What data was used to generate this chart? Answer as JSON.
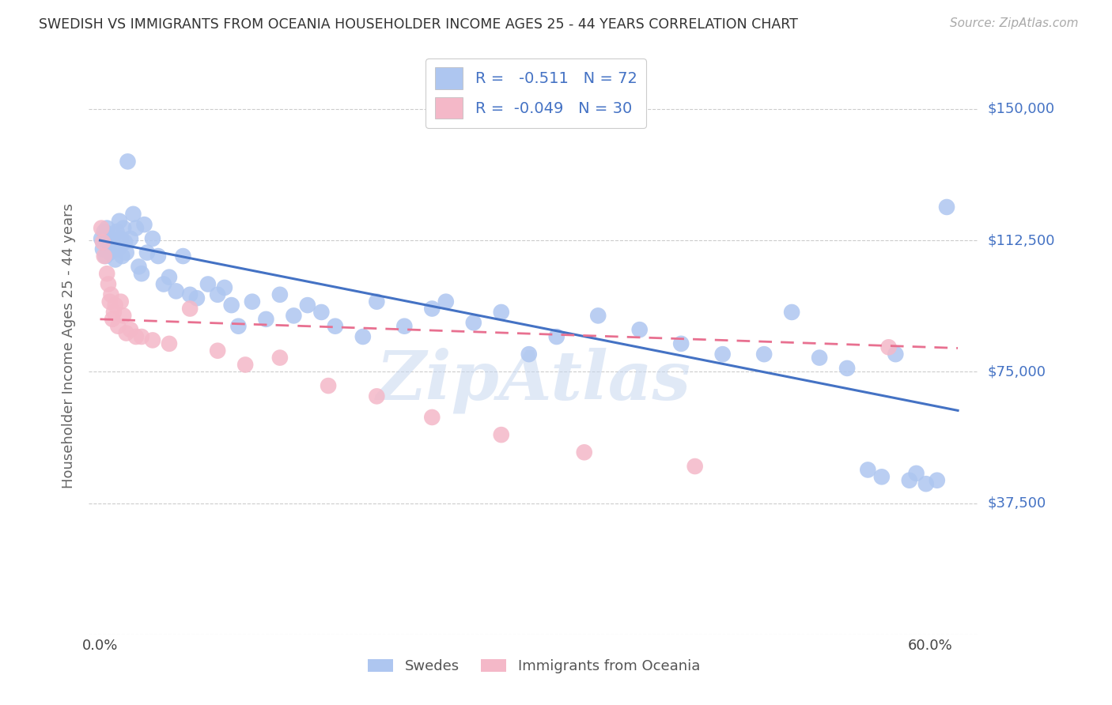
{
  "title": "SWEDISH VS IMMIGRANTS FROM OCEANIA HOUSEHOLDER INCOME AGES 25 - 44 YEARS CORRELATION CHART",
  "source": "Source: ZipAtlas.com",
  "ylabel": "Householder Income Ages 25 - 44 years",
  "ytick_values": [
    37500,
    75000,
    112500,
    150000
  ],
  "ytick_labels": [
    "$37,500",
    "$75,000",
    "$112,500",
    "$150,000"
  ],
  "xtick_left": "0.0%",
  "xtick_right": "60.0%",
  "ymin": 0,
  "ymax": 165000,
  "xmin": -0.008,
  "xmax": 0.635,
  "legend_label1": "R =   -0.511   N = 72",
  "legend_label2": "R =  -0.049   N = 30",
  "scatter1_color": "#aec6f0",
  "scatter2_color": "#f4b8c8",
  "line1_color": "#4472c4",
  "line2_color": "#e87090",
  "watermark": "ZipAtlas",
  "scatter1_label": "Swedes",
  "scatter2_label": "Immigrants from Oceania",
  "title_fontsize": 12.5,
  "label_fontsize": 13,
  "source_fontsize": 11,
  "grid_color": "#cccccc",
  "line1_intercept": 112500,
  "line1_slope": -78333,
  "line2_intercept": 90000,
  "line2_slope": -13333,
  "swedes_x": [
    0.001,
    0.002,
    0.003,
    0.004,
    0.005,
    0.006,
    0.007,
    0.008,
    0.009,
    0.01,
    0.011,
    0.012,
    0.013,
    0.014,
    0.015,
    0.016,
    0.017,
    0.018,
    0.019,
    0.02,
    0.022,
    0.024,
    0.026,
    0.028,
    0.03,
    0.032,
    0.034,
    0.038,
    0.042,
    0.046,
    0.05,
    0.055,
    0.06,
    0.065,
    0.07,
    0.078,
    0.085,
    0.09,
    0.095,
    0.1,
    0.11,
    0.12,
    0.13,
    0.14,
    0.15,
    0.16,
    0.17,
    0.19,
    0.2,
    0.22,
    0.24,
    0.25,
    0.27,
    0.29,
    0.31,
    0.33,
    0.36,
    0.39,
    0.42,
    0.45,
    0.48,
    0.5,
    0.52,
    0.54,
    0.555,
    0.565,
    0.575,
    0.585,
    0.59,
    0.597,
    0.605,
    0.612
  ],
  "swedes_y": [
    113000,
    110000,
    115000,
    108000,
    116000,
    112000,
    109000,
    113000,
    111000,
    114000,
    107000,
    115000,
    110000,
    118000,
    113000,
    108000,
    116000,
    112000,
    109000,
    135000,
    113000,
    120000,
    116000,
    105000,
    103000,
    117000,
    109000,
    113000,
    108000,
    100000,
    102000,
    98000,
    108000,
    97000,
    96000,
    100000,
    97000,
    99000,
    94000,
    88000,
    95000,
    90000,
    97000,
    91000,
    94000,
    92000,
    88000,
    85000,
    95000,
    88000,
    93000,
    95000,
    89000,
    92000,
    80000,
    85000,
    91000,
    87000,
    83000,
    80000,
    80000,
    92000,
    79000,
    76000,
    47000,
    45000,
    80000,
    44000,
    46000,
    43000,
    44000,
    122000
  ],
  "oceania_x": [
    0.001,
    0.002,
    0.003,
    0.005,
    0.006,
    0.007,
    0.008,
    0.009,
    0.01,
    0.011,
    0.013,
    0.015,
    0.017,
    0.019,
    0.022,
    0.026,
    0.03,
    0.038,
    0.05,
    0.065,
    0.085,
    0.105,
    0.13,
    0.165,
    0.2,
    0.24,
    0.29,
    0.35,
    0.43,
    0.57
  ],
  "oceania_y": [
    116000,
    112000,
    108000,
    103000,
    100000,
    95000,
    97000,
    90000,
    92000,
    94000,
    88000,
    95000,
    91000,
    86000,
    87000,
    85000,
    85000,
    84000,
    83000,
    93000,
    81000,
    77000,
    79000,
    71000,
    68000,
    62000,
    57000,
    52000,
    48000,
    82000
  ]
}
